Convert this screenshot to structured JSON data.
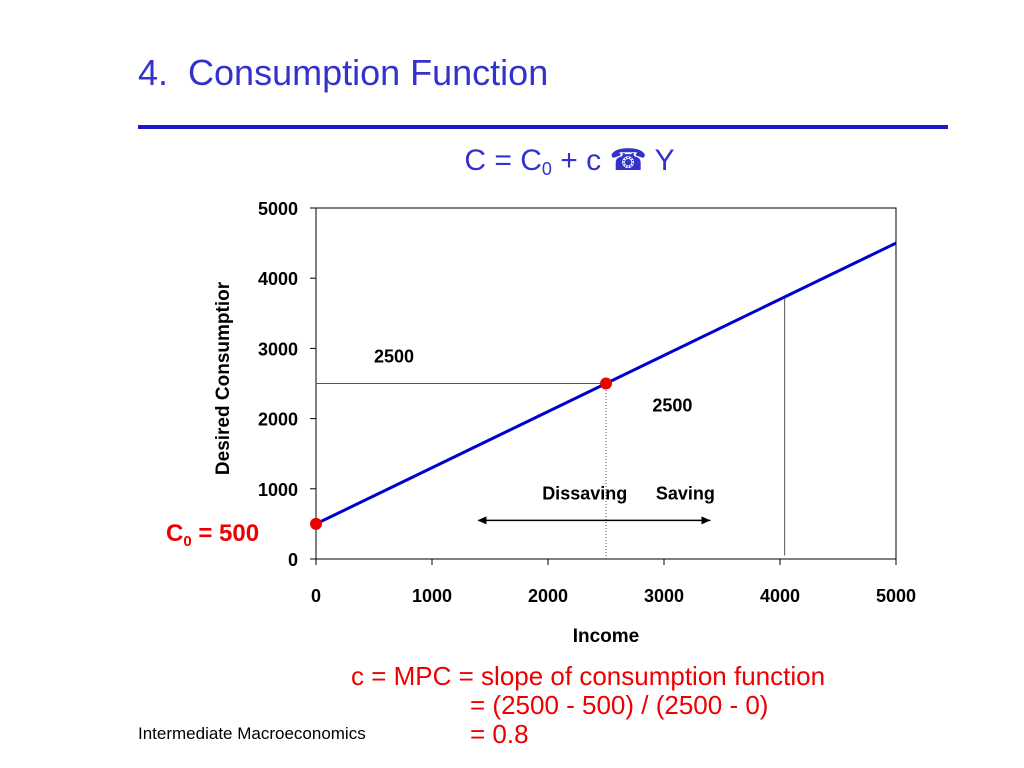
{
  "slide": {
    "title": "4.  Consumption Function",
    "formula": {
      "lhs": "C = C",
      "subscript": "0",
      "mid": " + c ",
      "symbol": "☎",
      "rhs": " Y"
    },
    "c0_label": {
      "prefix": "C",
      "subscript": "0",
      "suffix": " = 500"
    },
    "mpc_lines": [
      "c = MPC = slope of consumption function",
      "= (2500 - 500) / (2500 - 0)",
      "= 0.8"
    ],
    "footer": "Intermediate Macroeconomics"
  },
  "colors": {
    "title": "#3333cc",
    "rule": "#1a1acc",
    "line": "#0000cc",
    "point": "#ee0000",
    "annotation_red": "#ee0000"
  },
  "chart_data": {
    "type": "line",
    "xlabel": "Income",
    "ylabel": "Desired Consumptior",
    "xlim": [
      0,
      5000
    ],
    "ylim": [
      0,
      5000
    ],
    "x_ticks": [
      "0",
      "1000",
      "2000",
      "3000",
      "4000",
      "5000"
    ],
    "y_ticks": [
      "0",
      "1000",
      "2000",
      "3000",
      "4000",
      "5000"
    ],
    "series": [
      {
        "x": [
          0,
          5000
        ],
        "y": [
          500,
          4500
        ]
      }
    ],
    "points": [
      {
        "x": 0,
        "y": 500
      },
      {
        "x": 2500,
        "y": 2500
      }
    ],
    "guides": [
      {
        "kind": "horizontal",
        "y": 2500,
        "x_from": 0,
        "x_to": 2500
      },
      {
        "kind": "vertical_dotted",
        "x": 2500,
        "y_from": 0,
        "y_to": 2500
      },
      {
        "kind": "vertical",
        "x": 4040,
        "y_from": 50,
        "y_to": 3740
      }
    ],
    "annotations": [
      {
        "text": "2500",
        "x": 500,
        "y": 2800
      },
      {
        "text": "2500",
        "x": 2900,
        "y": 2100
      },
      {
        "text": "Dissaving",
        "x": 1950,
        "y": 850
      },
      {
        "text": "Saving",
        "x": 2930,
        "y": 850
      }
    ],
    "arrow": {
      "x_from": 1400,
      "x_to": 3400,
      "y": 550
    },
    "grid": false,
    "legend": "none"
  }
}
